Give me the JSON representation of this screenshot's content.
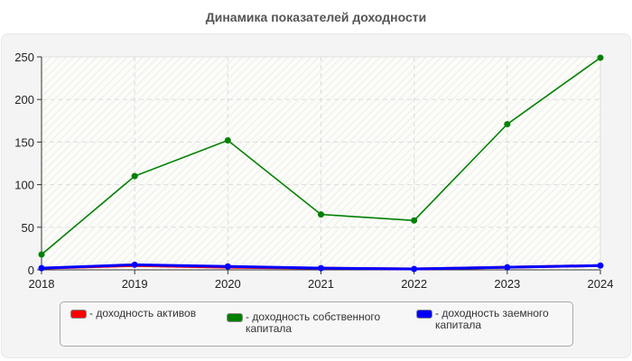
{
  "chart_data": {
    "type": "line",
    "title": "Динамика показателей доходности",
    "xlabel": "",
    "ylabel": "",
    "x": [
      "2018",
      "2019",
      "2020",
      "2021",
      "2022",
      "2023",
      "2024"
    ],
    "ylim": [
      0,
      250
    ],
    "yticks": [
      0,
      50,
      100,
      150,
      200,
      250
    ],
    "grid": true,
    "legend_position": "bottom",
    "series": [
      {
        "name": "- доходность активов",
        "color": "#ff0000",
        "values": [
          2,
          5,
          3,
          2,
          1,
          3,
          5
        ]
      },
      {
        "name": "- доходность собственного капитала",
        "color": "#008000",
        "values": [
          18,
          110,
          152,
          65,
          58,
          171,
          249
        ]
      },
      {
        "name": "- доходность заемного капитала",
        "color": "#0000ff",
        "values": [
          2,
          6,
          4,
          2,
          1,
          3,
          5
        ]
      }
    ]
  },
  "legend": {
    "items": [
      {
        "label": "- доходность активов",
        "color": "#ff0000"
      },
      {
        "label": "- доходность собственного капитала",
        "color": "#008000"
      },
      {
        "label": "- доходность заемного капитала",
        "color": "#0000ff"
      }
    ]
  }
}
